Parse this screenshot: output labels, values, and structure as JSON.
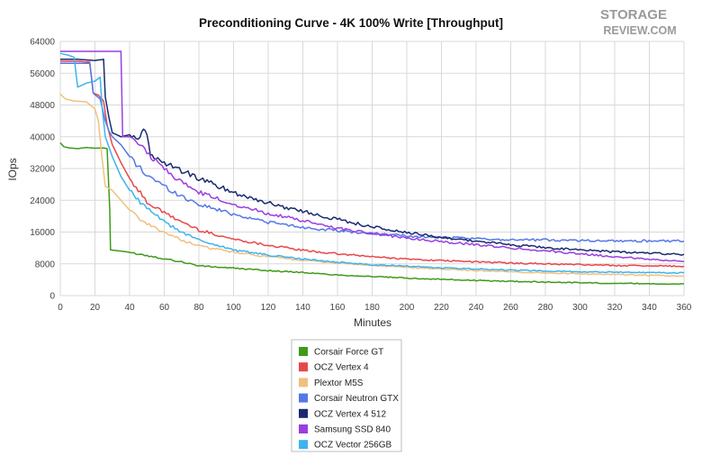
{
  "logo": {
    "line1": "STORAGE",
    "line2": "REVIEW.COM"
  },
  "chart_data": {
    "type": "line",
    "title": "Preconditioning Curve - 4K 100% Write [Throughput]",
    "xlabel": "Minutes",
    "ylabel": "IOps",
    "xlim": [
      0,
      360
    ],
    "ylim": [
      0,
      64000
    ],
    "xticks": [
      0,
      20,
      40,
      60,
      80,
      100,
      120,
      140,
      160,
      180,
      200,
      220,
      240,
      260,
      280,
      300,
      320,
      340,
      360
    ],
    "yticks": [
      0,
      8000,
      16000,
      24000,
      32000,
      40000,
      48000,
      56000,
      64000
    ],
    "grid": true,
    "legend_position": "bottom",
    "series": [
      {
        "name": "Corsair Force GT",
        "color": "#3f9a1a",
        "points": [
          [
            0,
            38500
          ],
          [
            2,
            37500
          ],
          [
            5,
            37200
          ],
          [
            10,
            37000
          ],
          [
            15,
            37300
          ],
          [
            20,
            37100
          ],
          [
            25,
            37200
          ],
          [
            27,
            37000
          ],
          [
            28.5,
            22000
          ],
          [
            29,
            11500
          ],
          [
            35,
            11200
          ],
          [
            40,
            10900
          ],
          [
            50,
            10100
          ],
          [
            60,
            9300
          ],
          [
            70,
            8500
          ],
          [
            80,
            7500
          ],
          [
            100,
            6900
          ],
          [
            120,
            6300
          ],
          [
            140,
            5800
          ],
          [
            160,
            5200
          ],
          [
            180,
            4800
          ],
          [
            200,
            4400
          ],
          [
            220,
            4100
          ],
          [
            240,
            3800
          ],
          [
            260,
            3600
          ],
          [
            280,
            3400
          ],
          [
            300,
            3250
          ],
          [
            320,
            3100
          ],
          [
            340,
            3000
          ],
          [
            360,
            2900
          ]
        ]
      },
      {
        "name": "OCZ Vertex 4",
        "color": "#e8474a",
        "points": [
          [
            0,
            59000
          ],
          [
            10,
            59000
          ],
          [
            17,
            58800
          ],
          [
            19,
            51000
          ],
          [
            22,
            50500
          ],
          [
            25,
            49000
          ],
          [
            27,
            43000
          ],
          [
            30,
            38000
          ],
          [
            35,
            33500
          ],
          [
            40,
            29500
          ],
          [
            45,
            26500
          ],
          [
            50,
            23500
          ],
          [
            60,
            20800
          ],
          [
            70,
            18600
          ],
          [
            80,
            16500
          ],
          [
            100,
            14200
          ],
          [
            120,
            12700
          ],
          [
            140,
            11400
          ],
          [
            160,
            10500
          ],
          [
            180,
            9800
          ],
          [
            200,
            9200
          ],
          [
            220,
            8800
          ],
          [
            240,
            8500
          ],
          [
            260,
            8200
          ],
          [
            280,
            8000
          ],
          [
            300,
            7800
          ],
          [
            320,
            7600
          ],
          [
            340,
            7500
          ],
          [
            360,
            7400
          ]
        ]
      },
      {
        "name": "Plextor M5S",
        "color": "#f0c080",
        "points": [
          [
            0,
            50800
          ],
          [
            3,
            49500
          ],
          [
            8,
            49000
          ],
          [
            15,
            48800
          ],
          [
            20,
            47000
          ],
          [
            22,
            44000
          ],
          [
            24,
            35000
          ],
          [
            26,
            27500
          ],
          [
            30,
            26500
          ],
          [
            35,
            24000
          ],
          [
            40,
            21500
          ],
          [
            45,
            19500
          ],
          [
            50,
            18000
          ],
          [
            60,
            16000
          ],
          [
            70,
            14000
          ],
          [
            80,
            12500
          ],
          [
            100,
            10900
          ],
          [
            120,
            9800
          ],
          [
            140,
            8900
          ],
          [
            160,
            8200
          ],
          [
            180,
            7600
          ],
          [
            200,
            7100
          ],
          [
            220,
            6700
          ],
          [
            240,
            6300
          ],
          [
            260,
            6000
          ],
          [
            280,
            5700
          ],
          [
            300,
            5500
          ],
          [
            320,
            5300
          ],
          [
            340,
            5100
          ],
          [
            360,
            4900
          ]
        ]
      },
      {
        "name": "Corsair Neutron GTX",
        "color": "#5577e8",
        "points": [
          [
            0,
            58500
          ],
          [
            10,
            58500
          ],
          [
            17,
            58500
          ],
          [
            19,
            51000
          ],
          [
            23,
            49500
          ],
          [
            26,
            44000
          ],
          [
            28,
            41500
          ],
          [
            30,
            40000
          ],
          [
            35,
            38000
          ],
          [
            40,
            35000
          ],
          [
            45,
            32500
          ],
          [
            50,
            30500
          ],
          [
            60,
            27500
          ],
          [
            70,
            25000
          ],
          [
            80,
            23000
          ],
          [
            100,
            20500
          ],
          [
            120,
            18500
          ],
          [
            140,
            17200
          ],
          [
            160,
            16300
          ],
          [
            180,
            15600
          ],
          [
            200,
            15000
          ],
          [
            220,
            14600
          ],
          [
            240,
            14300
          ],
          [
            260,
            14100
          ],
          [
            280,
            14000
          ],
          [
            300,
            13900
          ],
          [
            320,
            13800
          ],
          [
            340,
            13750
          ],
          [
            360,
            13700
          ]
        ]
      },
      {
        "name": "OCZ Vertex 4 512",
        "color": "#1a2a70",
        "points": [
          [
            0,
            59500
          ],
          [
            10,
            59500
          ],
          [
            20,
            59200
          ],
          [
            25,
            59500
          ],
          [
            26,
            50000
          ],
          [
            28,
            45000
          ],
          [
            30,
            41000
          ],
          [
            35,
            40000
          ],
          [
            40,
            40500
          ],
          [
            45,
            40000
          ],
          [
            48,
            41000
          ],
          [
            50,
            40500
          ],
          [
            52,
            36000
          ],
          [
            55,
            34500
          ],
          [
            60,
            33500
          ],
          [
            70,
            31500
          ],
          [
            80,
            29500
          ],
          [
            100,
            26000
          ],
          [
            120,
            23300
          ],
          [
            140,
            21200
          ],
          [
            160,
            19200
          ],
          [
            180,
            17300
          ],
          [
            200,
            15800
          ],
          [
            220,
            14700
          ],
          [
            240,
            13700
          ],
          [
            260,
            12800
          ],
          [
            280,
            12100
          ],
          [
            300,
            11500
          ],
          [
            320,
            11000
          ],
          [
            340,
            10700
          ],
          [
            360,
            10400
          ]
        ]
      },
      {
        "name": "Samsung SSD 840",
        "color": "#9a3ee0",
        "points": [
          [
            0,
            61500
          ],
          [
            10,
            61500
          ],
          [
            20,
            61500
          ],
          [
            30,
            61500
          ],
          [
            35,
            61500
          ],
          [
            36,
            40000
          ],
          [
            40,
            40000
          ],
          [
            45,
            38000
          ],
          [
            50,
            36000
          ],
          [
            55,
            34000
          ],
          [
            60,
            32000
          ],
          [
            70,
            28500
          ],
          [
            80,
            26000
          ],
          [
            100,
            23000
          ],
          [
            120,
            20700
          ],
          [
            140,
            18800
          ],
          [
            160,
            17000
          ],
          [
            180,
            15700
          ],
          [
            200,
            14500
          ],
          [
            220,
            13600
          ],
          [
            240,
            12800
          ],
          [
            260,
            12000
          ],
          [
            280,
            11300
          ],
          [
            300,
            10500
          ],
          [
            320,
            9800
          ],
          [
            340,
            9200
          ],
          [
            360,
            8600
          ]
        ]
      },
      {
        "name": "OCZ Vertex 4 512",
        "color": "#1a2a70",
        "legend": false,
        "points": []
      },
      {
        "name": "OCZ Vector 256GB",
        "color": "#3db3ee",
        "points": [
          [
            0,
            61000
          ],
          [
            5,
            60500
          ],
          [
            8,
            60000
          ],
          [
            10,
            52500
          ],
          [
            15,
            53500
          ],
          [
            20,
            54000
          ],
          [
            23,
            55000
          ],
          [
            24,
            48000
          ],
          [
            26,
            40000
          ],
          [
            30,
            35000
          ],
          [
            35,
            30000
          ],
          [
            40,
            26500
          ],
          [
            45,
            24000
          ],
          [
            50,
            22000
          ],
          [
            60,
            18500
          ],
          [
            70,
            16000
          ],
          [
            80,
            14000
          ],
          [
            100,
            11500
          ],
          [
            120,
            10200
          ],
          [
            140,
            9200
          ],
          [
            160,
            8400
          ],
          [
            180,
            7800
          ],
          [
            200,
            7400
          ],
          [
            220,
            7000
          ],
          [
            240,
            6700
          ],
          [
            260,
            6400
          ],
          [
            280,
            6200
          ],
          [
            300,
            6000
          ],
          [
            320,
            5900
          ],
          [
            340,
            5800
          ],
          [
            360,
            5700
          ]
        ]
      }
    ]
  }
}
